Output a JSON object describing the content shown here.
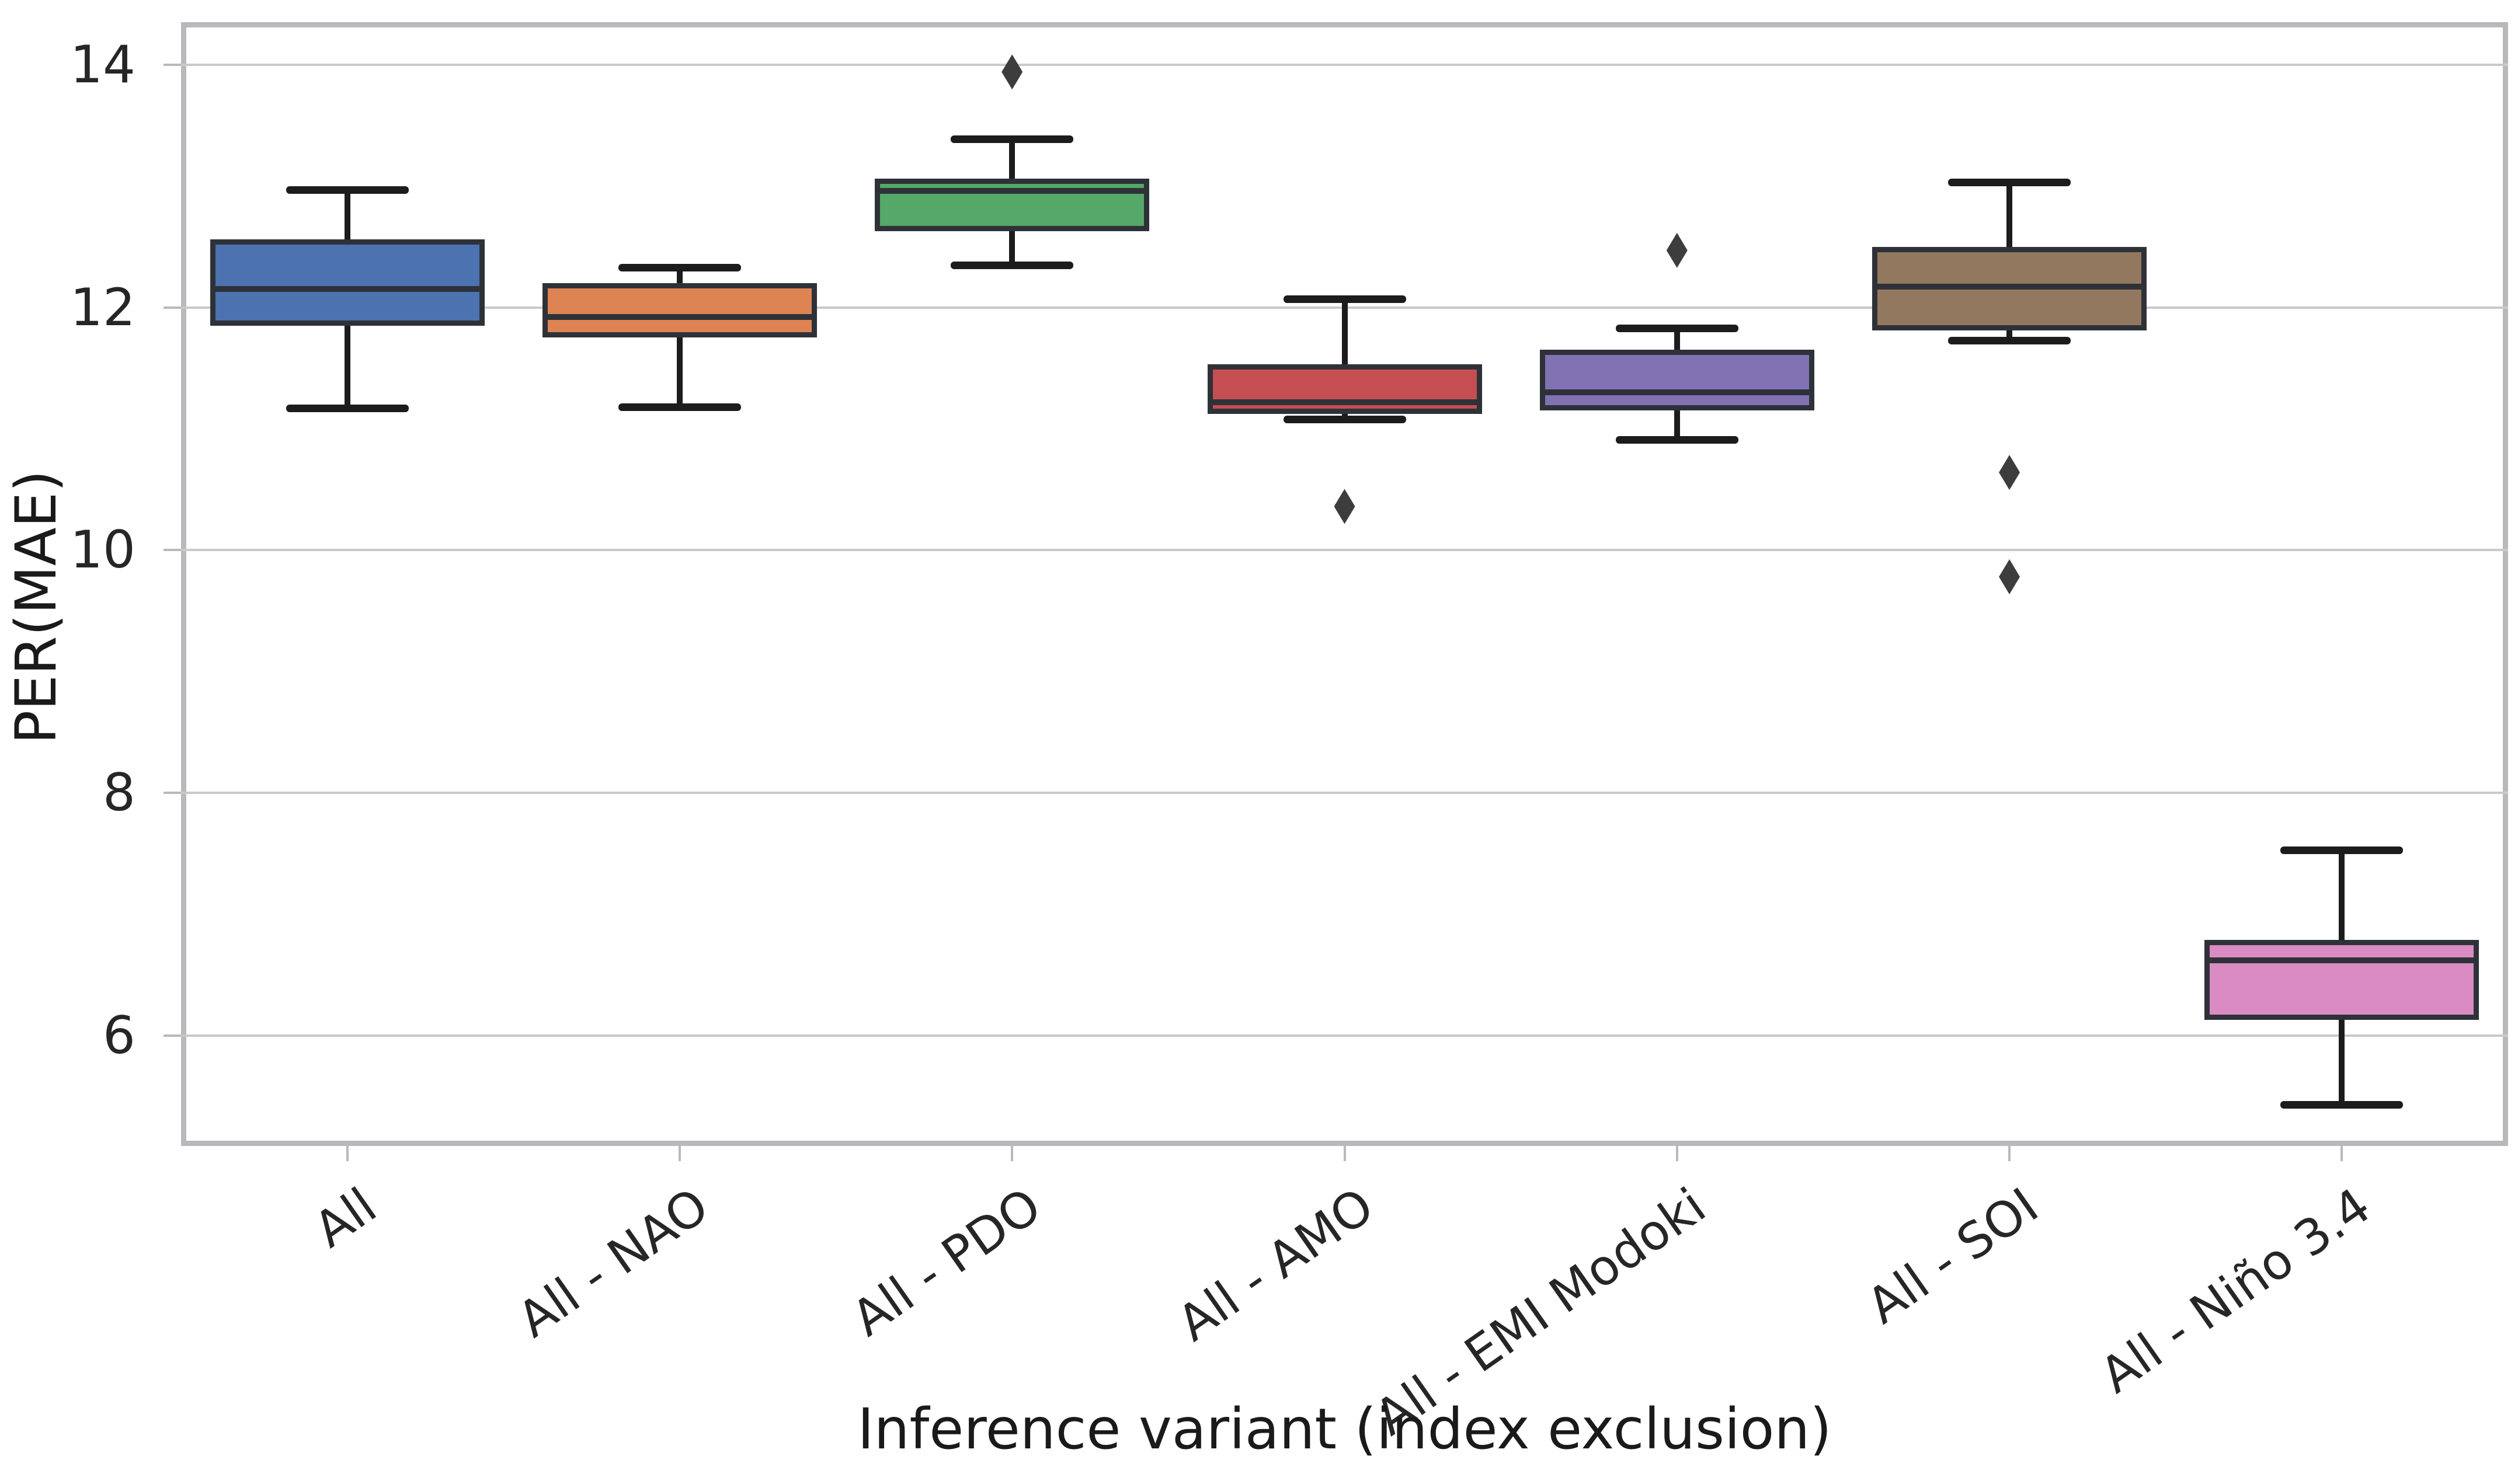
{
  "chart_data": {
    "type": "boxplot",
    "title": "",
    "xlabel": "Inference variant (index exclusion)",
    "ylabel": "PER(MAE)",
    "ylim": [
      5.09,
      14.35
    ],
    "yticks": [
      6,
      8,
      10,
      12,
      14
    ],
    "grid": true,
    "legend_position": "none",
    "xticklabel_rotation_deg": 35,
    "categories": [
      "All",
      "All - NAO",
      "All - PDO",
      "All - AMO",
      "All - EMI Modoki",
      "All - SOI",
      "All - Niño 3.4"
    ],
    "series": [
      {
        "name": "All",
        "color": "#4C72B0",
        "whisker_low": 11.17,
        "q1": 11.85,
        "median": 12.15,
        "q3": 12.56,
        "whisker_high": 12.97,
        "outliers": []
      },
      {
        "name": "All - NAO",
        "color": "#DD8452",
        "whisker_low": 11.18,
        "q1": 11.75,
        "median": 11.92,
        "q3": 12.2,
        "whisker_high": 12.33,
        "outliers": []
      },
      {
        "name": "All - PDO",
        "color": "#55A868",
        "whisker_low": 12.35,
        "q1": 12.63,
        "median": 12.96,
        "q3": 13.06,
        "whisker_high": 13.39,
        "outliers": [
          13.94
        ]
      },
      {
        "name": "All - AMO",
        "color": "#C44E52",
        "whisker_low": 11.08,
        "q1": 11.12,
        "median": 11.22,
        "q3": 11.53,
        "whisker_high": 12.07,
        "outliers": [
          10.36
        ]
      },
      {
        "name": "All - EMI Modoki",
        "color": "#8172B3",
        "whisker_low": 10.91,
        "q1": 11.15,
        "median": 11.3,
        "q3": 11.65,
        "whisker_high": 11.83,
        "outliers": [
          12.47
        ]
      },
      {
        "name": "All - SOI",
        "color": "#937860",
        "whisker_low": 11.73,
        "q1": 11.81,
        "median": 12.17,
        "q3": 12.5,
        "whisker_high": 13.03,
        "outliers": [
          10.64,
          9.78
        ]
      },
      {
        "name": "All - Niño 3.4",
        "color": "#DA8BC3",
        "whisker_low": 5.43,
        "q1": 6.13,
        "median": 6.62,
        "q3": 6.79,
        "whisker_high": 7.53,
        "outliers": []
      }
    ],
    "style_colors": {
      "gridline": "#c9c9c9",
      "spine": "#b9b9bd",
      "box_edge": "#2e3238",
      "whisker": "#1c1c1c",
      "outlier": "#3d3d3d",
      "text": "#262626"
    }
  }
}
